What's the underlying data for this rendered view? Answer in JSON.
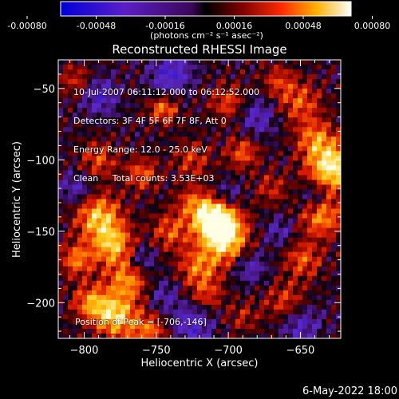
{
  "colorbar": {
    "ticks": [
      "-0.00080",
      "-0.00048",
      "-0.00016",
      "0.00016",
      "0.00048",
      "0.00080"
    ],
    "unit_label": "(photons cm⁻² s⁻¹ asec⁻²)"
  },
  "chart_data": {
    "type": "heatmap",
    "title": "Reconstructed RHESSI Image",
    "xlabel": "Heliocentric X (arcsec)",
    "ylabel": "Heliocentric Y (arcsec)",
    "xlim": [
      -818,
      -622
    ],
    "ylim": [
      -225,
      -30
    ],
    "x_ticks": [
      -800,
      -750,
      -700,
      -650
    ],
    "y_ticks": [
      -50,
      -100,
      -150,
      -200
    ],
    "x_tick_labels": [
      "−800",
      "−750",
      "−700",
      "−650"
    ],
    "y_tick_labels": [
      "−50",
      "−100",
      "−150",
      "−200"
    ],
    "colormap": "rhessi-diverging-blue-purple-black-red-yellow-white",
    "value_range": [
      -0.0008,
      0.0008
    ],
    "peak": [
      -706,
      -146
    ],
    "grid": false
  },
  "info": {
    "time_range": "10-Jul-2007 06:11:12.000 to 06:12:52.000",
    "detectors": "Detectors: 3F 4F 5F 6F 7F 8F, Att 0",
    "energy_range": "Energy Range: 12.0 - 25.0 keV",
    "method_counts": "Clean     Total counts: 3.53E+03",
    "peak_position": "Position of Peak = [-706,-146]"
  },
  "footer": {
    "date": "6-May-2022 18:00"
  }
}
